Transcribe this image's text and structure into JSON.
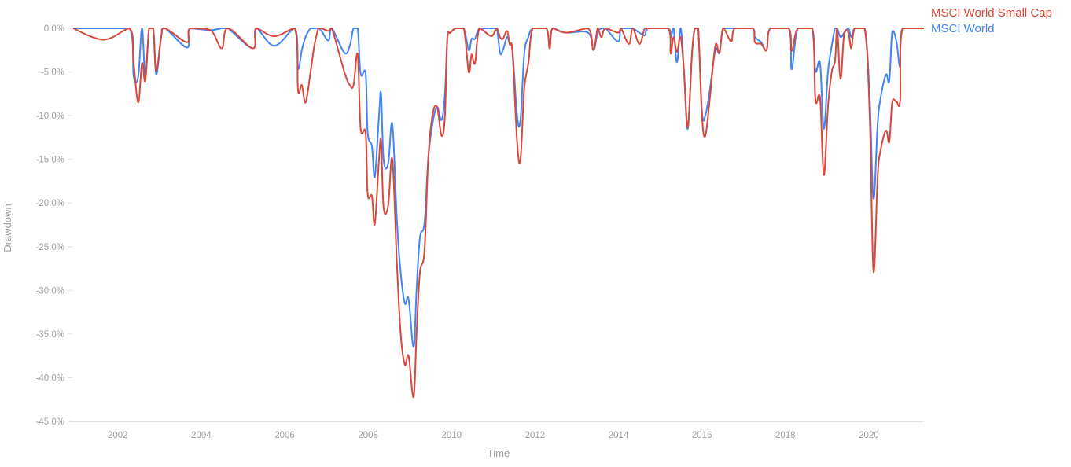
{
  "chart_data": {
    "type": "line",
    "title": "",
    "xlabel": "Time",
    "ylabel": "Drawdown",
    "xlim": [
      2000.93,
      2021.32
    ],
    "ylim": [
      -45,
      0
    ],
    "x_ticks": [
      "2002",
      "2004",
      "2006",
      "2008",
      "2010",
      "2012",
      "2014",
      "2016",
      "2018",
      "2020"
    ],
    "x_tick_values": [
      2002,
      2004,
      2006,
      2008,
      2010,
      2012,
      2014,
      2016,
      2018,
      2020
    ],
    "y_ticks": [
      "0.0%",
      "-5.0%",
      "-10.0%",
      "-15.0%",
      "-20.0%",
      "-25.0%",
      "-30.0%",
      "-35.0%",
      "-40.0%",
      "-45.0%"
    ],
    "y_tick_values": [
      0,
      -5,
      -10,
      -15,
      -20,
      -25,
      -30,
      -35,
      -40,
      -45
    ],
    "grid": false,
    "legend_placement": "top-right",
    "x": [
      2000.93,
      2001.66,
      2002.28,
      2002.38,
      2002.49,
      2002.58,
      2002.66,
      2002.75,
      2002.85,
      2002.92,
      2003.04,
      2003.13,
      2003.66,
      2003.73,
      2004.22,
      2004.49,
      2004.64,
      2005.24,
      2005.32,
      2005.75,
      2006.24,
      2006.32,
      2006.41,
      2006.5,
      2006.62,
      2006.71,
      2006.81,
      2006.88,
      2007.05,
      2007.13,
      2007.43,
      2007.56,
      2007.65,
      2007.75,
      2007.82,
      2007.94,
      2007.99,
      2008.09,
      2008.16,
      2008.26,
      2008.31,
      2008.37,
      2008.48,
      2008.58,
      2008.69,
      2008.78,
      2008.88,
      2008.97,
      2009.09,
      2009.16,
      2009.24,
      2009.35,
      2009.44,
      2009.54,
      2009.65,
      2009.76,
      2009.84,
      2009.9,
      2009.97,
      2010.1,
      2010.29,
      2010.41,
      2010.48,
      2010.56,
      2010.67,
      2010.95,
      2011.08,
      2011.16,
      2011.23,
      2011.33,
      2011.39,
      2011.46,
      2011.57,
      2011.65,
      2011.74,
      2011.84,
      2011.95,
      2012.27,
      2012.35,
      2012.42,
      2012.74,
      2013.27,
      2013.4,
      2013.5,
      2013.59,
      2013.69,
      2013.99,
      2014.06,
      2014.25,
      2014.34,
      2014.5,
      2014.63,
      2014.72,
      2015.19,
      2015.25,
      2015.32,
      2015.4,
      2015.49,
      2015.57,
      2015.66,
      2015.76,
      2015.83,
      2015.91,
      2016.0,
      2016.08,
      2016.19,
      2016.32,
      2016.42,
      2016.51,
      2016.7,
      2016.79,
      2017.21,
      2017.27,
      2017.42,
      2017.55,
      2017.64,
      2018.08,
      2018.15,
      2018.3,
      2018.64,
      2018.72,
      2018.83,
      2018.92,
      2019.02,
      2019.11,
      2019.19,
      2019.24,
      2019.32,
      2019.41,
      2019.51,
      2019.58,
      2019.66,
      2019.9,
      2020.02,
      2020.11,
      2020.21,
      2020.28,
      2020.41,
      2020.49,
      2020.56,
      2020.66,
      2020.75,
      2020.81,
      2021.32
    ],
    "series": [
      {
        "name": "MSCI World Small Cap",
        "color": "#d9483b",
        "values": [
          0,
          -1.3,
          0,
          -4,
          -8.5,
          -4,
          -6,
          0,
          0,
          -4.8,
          -1,
          0,
          -1.6,
          0,
          -0.2,
          -2.3,
          0,
          -2.3,
          0,
          -0.9,
          0,
          -7.1,
          -6.5,
          -8.5,
          -5,
          -2,
          0,
          0,
          -0.3,
          0,
          -5,
          -6.5,
          -6.5,
          -3,
          -11.5,
          -12,
          -19,
          -19.2,
          -22.4,
          -15,
          -13,
          -20.5,
          -20.3,
          -15,
          -27,
          -35,
          -38.5,
          -37.5,
          -42.2,
          -35,
          -28,
          -25.5,
          -15,
          -10,
          -9,
          -12.3,
          -10,
          -1,
          -0.5,
          0,
          0,
          -5,
          -3,
          -4,
          0,
          -0.9,
          0,
          -1,
          -1.2,
          -0.3,
          -1.8,
          -2.8,
          -13,
          -15,
          -7,
          -4,
          0,
          0,
          -2.3,
          0,
          -0.5,
          0,
          -2.5,
          0,
          -1,
          0,
          -0.5,
          0,
          -1.8,
          0,
          -1.8,
          0,
          0,
          0,
          -2.9,
          -1,
          -2.7,
          -1,
          -5,
          -11.3,
          -3,
          0,
          0,
          -10,
          -12.3,
          -8,
          -2,
          -2.8,
          0,
          -1.5,
          0,
          0,
          -1.6,
          -1.8,
          -2.5,
          0,
          0,
          -2.6,
          0,
          0,
          -8.2,
          -8,
          -16.8,
          -9,
          -5,
          -3.7,
          0,
          -5.8,
          -0.5,
          -0.5,
          -2.3,
          0,
          0,
          -10,
          -27.8,
          -17,
          -14,
          -11.7,
          -13,
          -8.5,
          -8.4,
          -8.2,
          0,
          0
        ]
      },
      {
        "name": "MSCI World",
        "color": "#4285f4",
        "values": [
          0,
          0,
          0,
          -5.5,
          -5.5,
          0,
          -5.5,
          0,
          0,
          -5.3,
          -1,
          0,
          -2.2,
          0,
          -0.2,
          0,
          0,
          -2.3,
          0,
          -2,
          0,
          -4.6,
          -2.5,
          -1,
          0,
          0,
          0,
          -0.3,
          -1.4,
          0,
          -2.8,
          -2,
          0,
          0,
          -5.2,
          -5.2,
          -12,
          -13.5,
          -17,
          -10,
          -7.5,
          -15,
          -15.5,
          -11,
          -22,
          -28,
          -31.5,
          -31,
          -36.5,
          -30,
          -24,
          -22.3,
          -15,
          -11,
          -9,
          -10.5,
          -7.5,
          -1,
          -0.5,
          0,
          0,
          -2.5,
          -1.2,
          -1.2,
          0,
          0,
          0,
          -2.8,
          -2.5,
          -1,
          -1.8,
          -2.5,
          -10,
          -10.5,
          -3,
          -1,
          0,
          0,
          -2.3,
          0,
          -0.5,
          -0.5,
          -2.5,
          -0.5,
          0,
          0,
          -1.5,
          0,
          0,
          0,
          -0.5,
          -0.8,
          0,
          0,
          -1,
          0,
          -3.9,
          0,
          -5,
          -11.5,
          -3,
          0,
          0,
          -9.5,
          -10,
          -7,
          -2.5,
          -2.8,
          0,
          0,
          0,
          0,
          -1,
          -1.6,
          -2.5,
          0,
          0,
          -4.7,
          0,
          0,
          -4.9,
          -4,
          -11.5,
          -5,
          -2,
          0,
          0,
          -1,
          -0.5,
          0,
          -1,
          0,
          0,
          -8,
          -19.5,
          -11,
          -8,
          -5.3,
          -6,
          -0.4,
          -1.5,
          -4.4,
          0,
          0
        ]
      }
    ]
  }
}
